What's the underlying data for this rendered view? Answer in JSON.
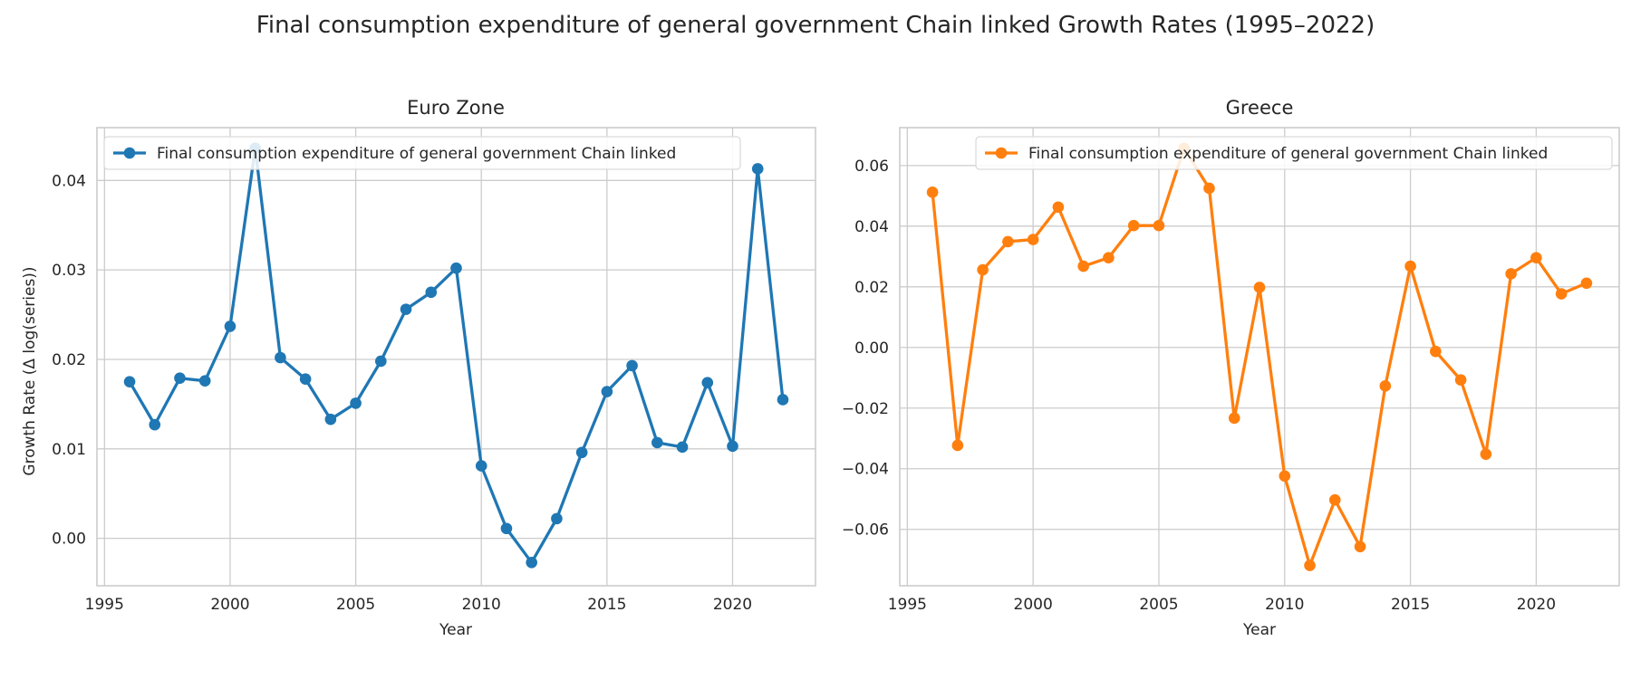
{
  "figure": {
    "title": "Final consumption expenditure of general government Chain linked Growth Rates (1995–2022)"
  },
  "chart_data": [
    {
      "type": "line",
      "title": "Euro Zone",
      "xlabel": "Year",
      "ylabel": "Growth Rate (Δ log(series))",
      "xlim": [
        1994.7,
        2023.3
      ],
      "ylim": [
        -0.0053,
        0.0459
      ],
      "xticks": [
        1995,
        2000,
        2005,
        2010,
        2015,
        2020
      ],
      "yticks": [
        0.0,
        0.01,
        0.02,
        0.03,
        0.04
      ],
      "ytick_labels": [
        "0.00",
        "0.01",
        "0.02",
        "0.03",
        "0.04"
      ],
      "grid": true,
      "legend_position": "upper-left",
      "color": "#1f77b4",
      "series": [
        {
          "name": "Final consumption expenditure of general government Chain linked",
          "x": [
            1996,
            1997,
            1998,
            1999,
            2000,
            2001,
            2002,
            2003,
            2004,
            2005,
            2006,
            2007,
            2008,
            2009,
            2010,
            2011,
            2012,
            2013,
            2014,
            2015,
            2016,
            2017,
            2018,
            2019,
            2020,
            2021,
            2022
          ],
          "y": [
            0.0175,
            0.0127,
            0.0179,
            0.0176,
            0.0237,
            0.0436,
            0.0202,
            0.0178,
            0.0133,
            0.0151,
            0.0198,
            0.0256,
            0.0275,
            0.0302,
            0.0081,
            0.0011,
            -0.0027,
            0.0022,
            0.0096,
            0.0164,
            0.0193,
            0.0107,
            0.0102,
            0.0174,
            0.0103,
            0.0413,
            0.0155
          ]
        }
      ]
    },
    {
      "type": "line",
      "title": "Greece",
      "xlabel": "Year",
      "ylabel": "",
      "xlim": [
        1994.7,
        2023.3
      ],
      "ylim": [
        -0.0786,
        0.0725
      ],
      "xticks": [
        1995,
        2000,
        2005,
        2010,
        2015,
        2020
      ],
      "yticks": [
        -0.06,
        -0.04,
        -0.02,
        0.0,
        0.02,
        0.04,
        0.06
      ],
      "ytick_labels": [
        "−0.06",
        "−0.04",
        "−0.02",
        "0.00",
        "0.02",
        "0.04",
        "0.06"
      ],
      "grid": true,
      "legend_position": "upper-right",
      "color": "#ff7f0e",
      "series": [
        {
          "name": "Final consumption expenditure of general government Chain linked",
          "x": [
            1996,
            1997,
            1998,
            1999,
            2000,
            2001,
            2002,
            2003,
            2004,
            2005,
            2006,
            2007,
            2008,
            2009,
            2010,
            2011,
            2012,
            2013,
            2014,
            2015,
            2016,
            2017,
            2018,
            2019,
            2020,
            2021,
            2022
          ],
          "y": [
            0.0512,
            -0.0323,
            0.0256,
            0.0349,
            0.0356,
            0.0463,
            0.0268,
            0.0296,
            0.0402,
            0.0402,
            0.0657,
            0.0525,
            -0.0233,
            0.0198,
            -0.0424,
            -0.0719,
            -0.0503,
            -0.0657,
            -0.0127,
            0.0268,
            -0.0013,
            -0.0107,
            -0.0352,
            0.0243,
            0.0296,
            0.0177,
            0.0212
          ]
        }
      ]
    }
  ]
}
